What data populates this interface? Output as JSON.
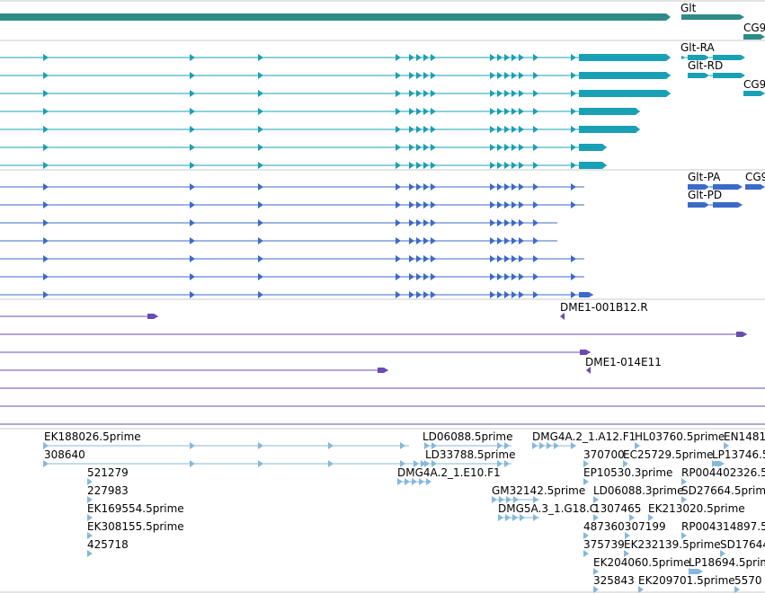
{
  "colors": {
    "gene": "#2e8b87",
    "flybase_transcript": "#1aa0b5",
    "protein": "#3b6bc8",
    "clone": "#6a4bb0",
    "est": "#86b8dc",
    "divider": "#c8c8c8"
  },
  "tracks": {
    "gene": {
      "labels": [
        "Glt",
        "CG9"
      ]
    },
    "transcripts": {
      "labels": [
        "Glt-RA",
        "Glt-RD",
        "CG9"
      ]
    },
    "proteins": {
      "labels": [
        "Glt-PA",
        "CG9",
        "Glt-PD"
      ]
    },
    "clones": {
      "labels": [
        "DME1-001B12.R",
        "DME1-014E11"
      ]
    },
    "ests": {
      "labels": [
        "EK188026.5prime",
        "308640",
        "521279",
        "227983",
        "EK169554.5prime",
        "EK308155.5prime",
        "425718",
        "LD06088.5prime",
        "LD33788.5prime",
        "DMG4A.2_1.E10.F1",
        "GM32142.5prime",
        "DMG5A.3_1.G18.C",
        "DMG4A.2_1.A12.F1",
        "HL03760.5prime",
        "EN1481",
        "370700",
        "EC25729.5prime",
        "LP13746.5",
        "EP10530.3prime",
        "RP004402326.5",
        "LD06088.3prime",
        "SD27664.5prime",
        "1307465",
        "EK213020.5prime",
        "487360307199",
        "RP004314897.5",
        "375739",
        "EK232139.5prime",
        "SD17644",
        "EK204060.5prime",
        "LP18694.5prime",
        "325843",
        "EK209701.5prime",
        "5570"
      ]
    }
  }
}
